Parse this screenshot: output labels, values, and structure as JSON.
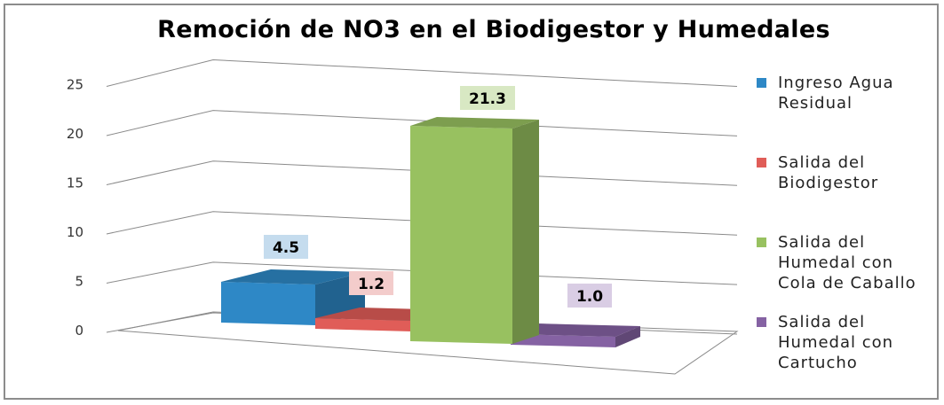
{
  "chart_data": {
    "type": "bar",
    "title": "Remoción de NO3 en el Biodigestor y Humedales",
    "xlabel": "",
    "ylabel": "",
    "ylim": [
      0,
      25
    ],
    "yticks": [
      0,
      5,
      10,
      15,
      20,
      25
    ],
    "grid": true,
    "legend_position": "right",
    "three_d": true,
    "series": [
      {
        "name": "Ingreso Agua Residual",
        "value": 4.5,
        "label": "4.5",
        "color": "#2e88c6",
        "label_bg": "#c5dcee"
      },
      {
        "name": "Salida del Biodigestor",
        "value": 1.2,
        "label": "1.2",
        "color": "#e05d58",
        "label_bg": "#f3cccb"
      },
      {
        "name": "Salida del Humedal con Cola de Caballo",
        "value": 21.3,
        "label": "21.3",
        "color": "#98c160",
        "label_bg": "#d8e8c3"
      },
      {
        "name": "Salida del Humedal con Cartucho",
        "value": 1.0,
        "label": "1.0",
        "color": "#8562a3",
        "label_bg": "#d9cde4"
      }
    ]
  }
}
